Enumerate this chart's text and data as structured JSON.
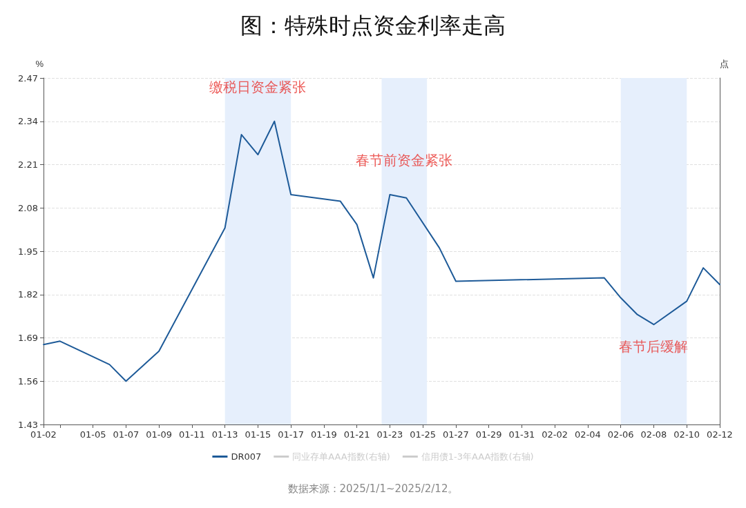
{
  "chart_data": {
    "type": "line",
    "title": "图：特殊时点资金利率走高",
    "ylabel": "%",
    "y2label": "点",
    "x": [
      "2025-01-02",
      "2025-01-03",
      "2025-01-06",
      "2025-01-07",
      "2025-01-09",
      "2025-01-13",
      "2025-01-14",
      "2025-01-15",
      "2025-01-16",
      "2025-01-17",
      "2025-01-20",
      "2025-01-21",
      "2025-01-22",
      "2025-01-23",
      "2025-01-24",
      "2025-01-26",
      "2025-01-27",
      "2025-02-05",
      "2025-02-06",
      "2025-02-07",
      "2025-02-08",
      "2025-02-10",
      "2025-02-11",
      "2025-02-12"
    ],
    "series": [
      {
        "name": "DR007",
        "color": "#1d5a98",
        "values": [
          1.67,
          1.68,
          1.61,
          1.56,
          1.65,
          2.02,
          2.3,
          2.24,
          2.34,
          2.12,
          2.1,
          2.03,
          1.87,
          2.12,
          2.11,
          1.96,
          1.86,
          1.87,
          1.81,
          1.76,
          1.73,
          1.8,
          1.9,
          1.85
        ]
      },
      {
        "name": "同业存单AAA指数(右轴)",
        "color": "#cccccc",
        "values": [
          null,
          null,
          null,
          null,
          null,
          null,
          null,
          null,
          null,
          null,
          null,
          null,
          null,
          null,
          null,
          null,
          null,
          null,
          null,
          null,
          null,
          null,
          null,
          null
        ]
      },
      {
        "name": "信用债1-3年AAA指数(右轴)",
        "color": "#cccccc",
        "values": [
          null,
          null,
          null,
          null,
          null,
          null,
          null,
          null,
          null,
          null,
          null,
          null,
          null,
          null,
          null,
          null,
          null,
          null,
          null,
          null,
          null,
          null,
          null,
          null
        ]
      }
    ],
    "xlim": [
      "2025-01-02",
      "2025-02-12"
    ],
    "xticks": [
      {
        "value": "2025-01-02",
        "label": "01-02"
      },
      {
        "value": "2025-01-03",
        "label": null
      },
      {
        "value": "2025-01-05",
        "label": "01-05"
      },
      {
        "value": "2025-01-07",
        "label": "01-07"
      },
      {
        "value": "2025-01-09",
        "label": "01-09"
      },
      {
        "value": "2025-01-11",
        "label": "01-11"
      },
      {
        "value": "2025-01-13",
        "label": "01-13"
      },
      {
        "value": "2025-01-15",
        "label": "01-15"
      },
      {
        "value": "2025-01-17",
        "label": "01-17"
      },
      {
        "value": "2025-01-19",
        "label": "01-19"
      },
      {
        "value": "2025-01-21",
        "label": "01-21"
      },
      {
        "value": "2025-01-23",
        "label": "01-23"
      },
      {
        "value": "2025-01-25",
        "label": "01-25"
      },
      {
        "value": "2025-01-27",
        "label": "01-27"
      },
      {
        "value": "2025-01-29",
        "label": "01-29"
      },
      {
        "value": "2025-01-31",
        "label": "01-31"
      },
      {
        "value": "2025-02-02",
        "label": "02-02"
      },
      {
        "value": "2025-02-04",
        "label": "02-04"
      },
      {
        "value": "2025-02-06",
        "label": "02-06"
      },
      {
        "value": "2025-02-08",
        "label": "02-08"
      },
      {
        "value": "2025-02-10",
        "label": "02-10"
      },
      {
        "value": "2025-02-12",
        "label": "02-12"
      }
    ],
    "ylim": [
      1.43,
      2.47
    ],
    "yticks": [
      1.43,
      1.56,
      1.69,
      1.82,
      1.95,
      2.08,
      2.21,
      2.34,
      2.47
    ],
    "bands": [
      {
        "axis": "x",
        "from": "2025-01-13",
        "to": "2025-01-17",
        "color": "#e6effc",
        "label": "缴税日资金紧张"
      },
      {
        "axis": "x",
        "from": "2025-01-22T12:00",
        "to": "2025-01-25T06:00",
        "color": "#e6effc",
        "label": "春节前资金紧张"
      },
      {
        "axis": "x",
        "from": "2025-02-06",
        "to": "2025-02-10",
        "color": "#e6effc",
        "label": "春节后缓解"
      }
    ],
    "annotations": [
      "数据来源：2025/1/1~2025/2/12。"
    ],
    "grid": "y",
    "legend": "bottom",
    "marker": "none",
    "line_style": "solid"
  }
}
